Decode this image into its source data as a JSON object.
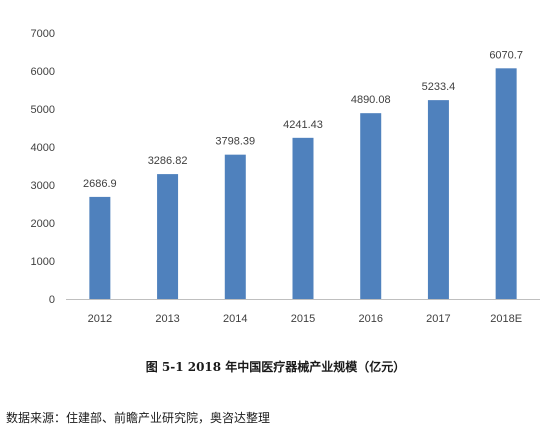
{
  "chart_data": {
    "type": "bar",
    "categories": [
      "2012",
      "2013",
      "2014",
      "2015",
      "2016",
      "2017",
      "2018E"
    ],
    "values": [
      2686.9,
      3286.82,
      3798.39,
      4241.43,
      4890.08,
      5233.4,
      6070.7
    ],
    "value_labels": [
      "2686.9",
      "3286.82",
      "3798.39",
      "4241.43",
      "4890.08",
      "5233.4",
      "6070.7"
    ],
    "ylim": [
      0,
      7000
    ],
    "yticks": [
      0,
      1000,
      2000,
      3000,
      4000,
      5000,
      6000,
      7000
    ],
    "grid": false,
    "bar_color": "#4f81bd"
  },
  "caption": "图 5-1    2018 年中国医疗器械产业规模（亿元）",
  "source": "数据来源：住建部、前瞻产业研究院，奥咨达整理"
}
